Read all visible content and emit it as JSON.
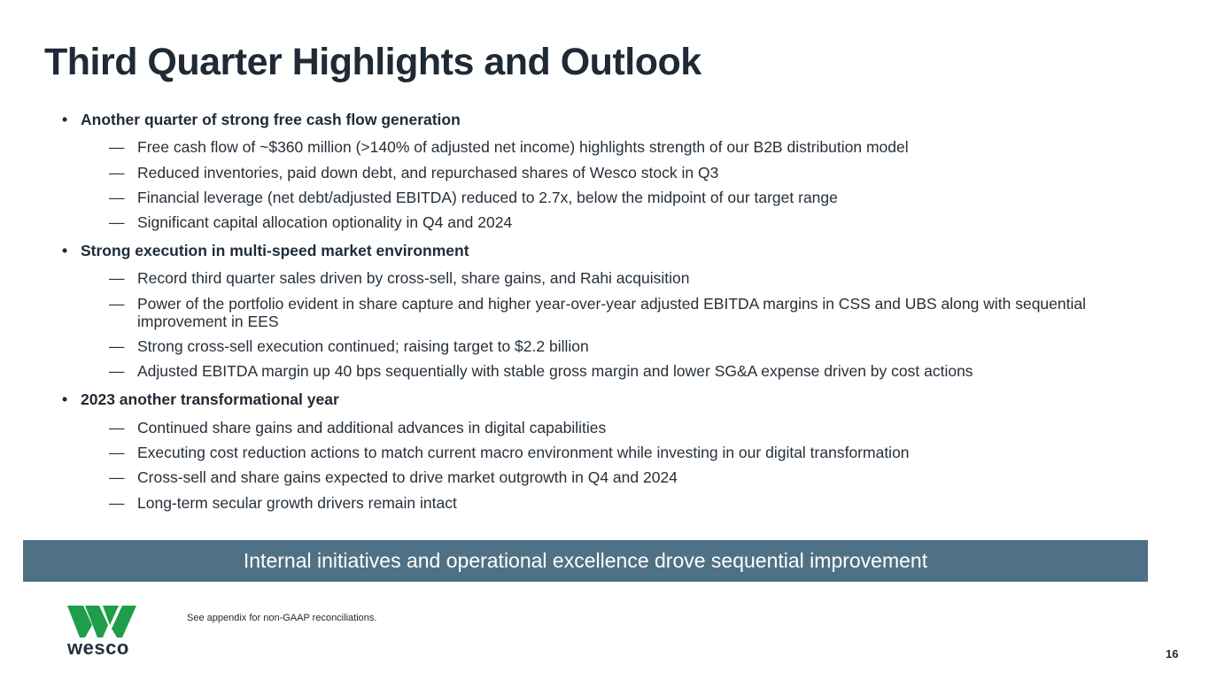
{
  "title": "Third Quarter Highlights and Outlook",
  "sections": [
    {
      "heading": "Another quarter of strong free cash flow generation",
      "items": [
        "Free cash flow of ~$360 million (>140% of adjusted net income) highlights strength of our B2B distribution model",
        "Reduced inventories, paid down debt, and repurchased shares of Wesco stock in Q3",
        "Financial leverage (net debt/adjusted EBITDA) reduced to 2.7x, below the midpoint of our target range",
        "Significant capital allocation optionality in Q4 and 2024"
      ]
    },
    {
      "heading": "Strong execution in multi-speed market environment",
      "items": [
        "Record third quarter sales driven by cross-sell, share gains, and Rahi acquisition",
        "Power of the portfolio evident in share capture and higher year-over-year adjusted EBITDA margins in CSS and UBS along with sequential improvement in EES",
        "Strong cross-sell execution continued; raising target to $2.2 billion",
        "Adjusted EBITDA margin up 40 bps sequentially with stable gross margin and lower SG&A expense driven by cost actions"
      ]
    },
    {
      "heading": "2023 another transformational year",
      "items": [
        "Continued share gains and additional advances in digital capabilities",
        "Executing cost reduction actions to match current macro environment while investing in our digital transformation",
        "Cross-sell and share gains expected to drive market outgrowth in Q4 and 2024",
        "Long-term secular growth drivers remain intact"
      ]
    }
  ],
  "bullet_symbol": "•",
  "dash_symbol": "—",
  "banner": "Internal initiatives and operational excellence drove sequential improvement",
  "footnote": "See appendix for non-GAAP reconciliations.",
  "logo": {
    "wordmark": "wesco",
    "icon": "wesco-w-logo-icon",
    "color": "#1e9e48"
  },
  "page_number": "16",
  "colors": {
    "banner_bg": "#4f7186",
    "title": "#1f2a36"
  }
}
